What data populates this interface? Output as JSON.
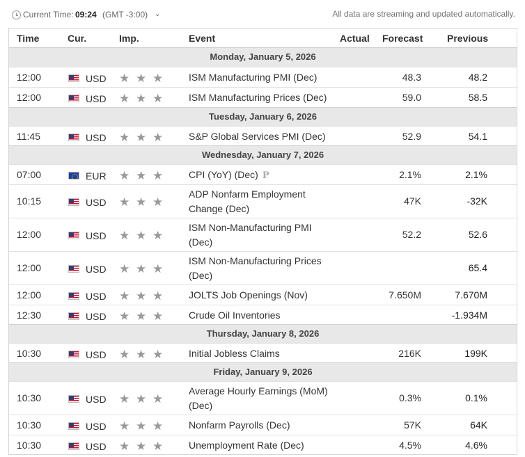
{
  "topbar": {
    "current_time_label": "Current Time:",
    "current_time_value": "09:24",
    "timezone": "(GMT -3:00)",
    "caret": "⌄",
    "streaming_text": "All data are streaming and updated automatically."
  },
  "columns": {
    "time": "Time",
    "cur": "Cur.",
    "imp": "Imp.",
    "event": "Event",
    "actual": "Actual",
    "forecast": "Forecast",
    "previous": "Previous"
  },
  "colors": {
    "header_bg": "#e8e8e8",
    "border": "#d6d6d6",
    "star": "#999999"
  },
  "days": [
    {
      "date": "Monday, January 5, 2026",
      "events": [
        {
          "time": "12:00",
          "flag": "us-flag-icon",
          "currency": "USD",
          "stars": 3,
          "event": "ISM Manufacturing PMI (Dec)",
          "actual": "",
          "forecast": "48.3",
          "previous": "48.2"
        },
        {
          "time": "12:00",
          "flag": "us-flag-icon",
          "currency": "USD",
          "stars": 3,
          "event": "ISM Manufacturing Prices (Dec)",
          "actual": "",
          "forecast": "59.0",
          "previous": "58.5"
        }
      ]
    },
    {
      "date": "Tuesday, January 6, 2026",
      "events": [
        {
          "time": "11:45",
          "flag": "us-flag-icon",
          "currency": "USD",
          "stars": 3,
          "event": "S&P Global Services PMI (Dec)",
          "actual": "",
          "forecast": "52.9",
          "previous": "54.1"
        }
      ]
    },
    {
      "date": "Wednesday, January 7, 2026",
      "events": [
        {
          "time": "07:00",
          "flag": "eu-flag-icon",
          "currency": "EUR",
          "stars": 3,
          "event": "CPI (YoY) (Dec)",
          "badge": "P",
          "actual": "",
          "forecast": "2.1%",
          "previous": "2.1%"
        },
        {
          "time": "10:15",
          "flag": "us-flag-icon",
          "currency": "USD",
          "stars": 3,
          "event": "ADP Nonfarm Employment Change (Dec)",
          "actual": "",
          "forecast": "47K",
          "previous": "-32K"
        },
        {
          "time": "12:00",
          "flag": "us-flag-icon",
          "currency": "USD",
          "stars": 3,
          "event": "ISM Non-Manufacturing PMI (Dec)",
          "actual": "",
          "forecast": "52.2",
          "previous": "52.6"
        },
        {
          "time": "12:00",
          "flag": "us-flag-icon",
          "currency": "USD",
          "stars": 3,
          "event": "ISM Non-Manufacturing Prices (Dec)",
          "actual": "",
          "forecast": "",
          "previous": "65.4"
        },
        {
          "time": "12:00",
          "flag": "us-flag-icon",
          "currency": "USD",
          "stars": 3,
          "event": "JOLTS Job Openings (Nov)",
          "actual": "",
          "forecast": "7.650M",
          "previous": "7.670M"
        },
        {
          "time": "12:30",
          "flag": "us-flag-icon",
          "currency": "USD",
          "stars": 3,
          "event": "Crude Oil Inventories",
          "actual": "",
          "forecast": "",
          "previous": "-1.934M"
        }
      ]
    },
    {
      "date": "Thursday, January 8, 2026",
      "events": [
        {
          "time": "10:30",
          "flag": "us-flag-icon",
          "currency": "USD",
          "stars": 3,
          "event": "Initial Jobless Claims",
          "actual": "",
          "forecast": "216K",
          "previous": "199K"
        }
      ]
    },
    {
      "date": "Friday, January 9, 2026",
      "events": [
        {
          "time": "10:30",
          "flag": "us-flag-icon",
          "currency": "USD",
          "stars": 3,
          "event": "Average Hourly Earnings (MoM) (Dec)",
          "actual": "",
          "forecast": "0.3%",
          "previous": "0.1%"
        },
        {
          "time": "10:30",
          "flag": "us-flag-icon",
          "currency": "USD",
          "stars": 3,
          "event": "Nonfarm Payrolls (Dec)",
          "actual": "",
          "forecast": "57K",
          "previous": "64K"
        },
        {
          "time": "10:30",
          "flag": "us-flag-icon",
          "currency": "USD",
          "stars": 3,
          "event": "Unemployment Rate (Dec)",
          "actual": "",
          "forecast": "4.5%",
          "previous": "4.6%"
        }
      ]
    }
  ]
}
